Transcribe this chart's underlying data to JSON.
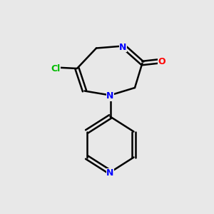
{
  "background_color": "#e8e8e8",
  "bond_color": "#000000",
  "bond_width": 1.8,
  "atom_colors": {
    "N": "#0000FF",
    "O": "#FF0000",
    "Cl": "#00BB00",
    "C": "#000000"
  },
  "font_size": 9
}
